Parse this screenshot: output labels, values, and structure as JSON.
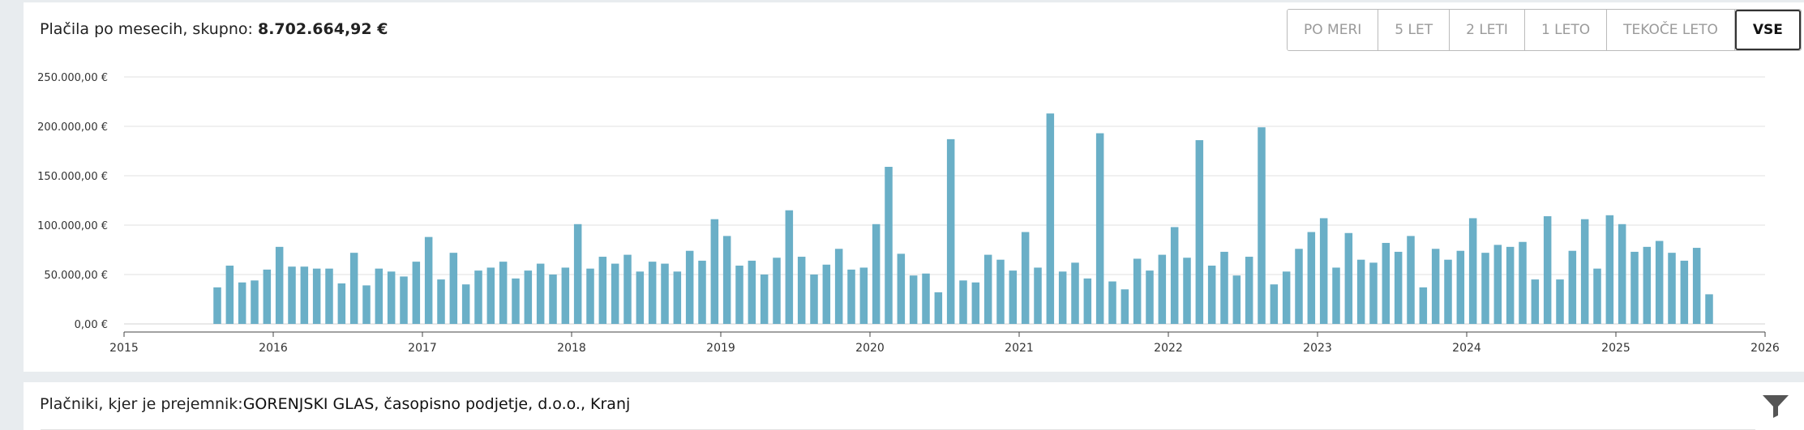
{
  "header": {
    "title_prefix": "Plačila po mesecih, skupno:",
    "total": "8.702.664,92 €"
  },
  "range_buttons": [
    {
      "label": "PO MERI",
      "active": false
    },
    {
      "label": "5 LET",
      "active": false
    },
    {
      "label": "2 LETI",
      "active": false
    },
    {
      "label": "1 LETO",
      "active": false
    },
    {
      "label": "TEKOČE LETO",
      "active": false
    },
    {
      "label": "VSE",
      "active": true
    }
  ],
  "payers": {
    "title_prefix": "Plačniki, kjer je prejemnik:",
    "recipient": "GORENJSKI GLAS, časopisno podjetje, d.o.o., Kranj",
    "filter_icon": "filter-icon"
  },
  "chart_data": {
    "type": "bar",
    "bar_color": "#6aafc7",
    "grid": true,
    "ylim": [
      0,
      250000
    ],
    "y_ticks": [
      {
        "value": 0,
        "label": "0,00 €"
      },
      {
        "value": 50000,
        "label": "50.000,00 €"
      },
      {
        "value": 100000,
        "label": "100.000,00 €"
      },
      {
        "value": 150000,
        "label": "150.000,00 €"
      },
      {
        "value": 200000,
        "label": "200.000,00 €"
      },
      {
        "value": 250000,
        "label": "250.000,00 €"
      }
    ],
    "x_range": [
      "2015-01",
      "2026-01"
    ],
    "x_ticks": [
      "2015",
      "2016",
      "2017",
      "2018",
      "2019",
      "2020",
      "2021",
      "2022",
      "2023",
      "2024",
      "2025",
      "2026"
    ],
    "first_month": "2015-08",
    "values": [
      37000,
      59000,
      42000,
      44000,
      55000,
      78000,
      58000,
      58000,
      56000,
      56000,
      41000,
      72000,
      39000,
      56000,
      53000,
      48000,
      63000,
      88000,
      45000,
      72000,
      40000,
      54000,
      57000,
      63000,
      46000,
      54000,
      61000,
      50000,
      57000,
      101000,
      56000,
      68000,
      61000,
      70000,
      53000,
      63000,
      61000,
      53000,
      74000,
      64000,
      106000,
      89000,
      59000,
      64000,
      50000,
      67000,
      115000,
      68000,
      50000,
      60000,
      76000,
      55000,
      57000,
      101000,
      159000,
      71000,
      49000,
      51000,
      32000,
      187000,
      44000,
      42000,
      70000,
      65000,
      54000,
      93000,
      57000,
      213000,
      53000,
      62000,
      46000,
      193000,
      43000,
      35000,
      66000,
      54000,
      70000,
      98000,
      67000,
      186000,
      59000,
      73000,
      49000,
      68000,
      199000,
      40000,
      53000,
      76000,
      93000,
      107000,
      57000,
      92000,
      65000,
      62000,
      82000,
      73000,
      89000,
      37000,
      76000,
      65000,
      74000,
      107000,
      72000,
      80000,
      78000,
      83000,
      45000,
      109000,
      45000,
      74000,
      106000,
      56000,
      110000,
      101000,
      73000,
      78000,
      84000,
      72000,
      64000,
      77000,
      30000
    ]
  }
}
